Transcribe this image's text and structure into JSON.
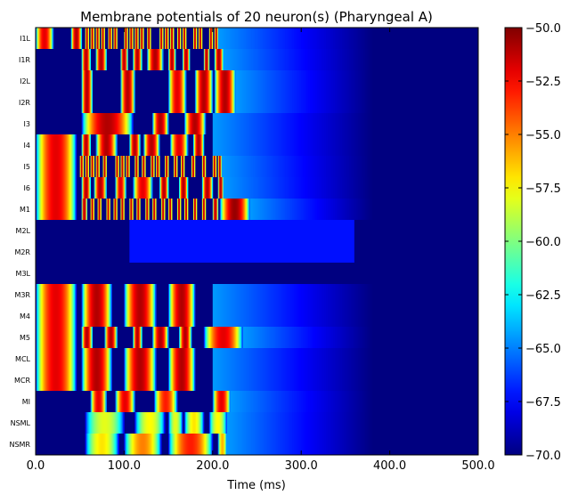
{
  "chart_data": {
    "type": "heatmap",
    "title": "Membrane potentials of 20 neuron(s) (Pharyngeal A)",
    "xlabel": "Time (ms)",
    "ylabel": "",
    "xlim": [
      0,
      500
    ],
    "x_ticks": [
      0,
      100,
      200,
      300,
      400,
      500
    ],
    "x_tick_labels": [
      "0.0",
      "100.0",
      "200.0",
      "300.0",
      "400.0",
      "500.0"
    ],
    "rows": [
      "I1L",
      "I1R",
      "I2L",
      "I2R",
      "I3",
      "I4",
      "I5",
      "I6",
      "M1",
      "M2L",
      "M2R",
      "M3L",
      "M3R",
      "M4",
      "M5",
      "MCL",
      "MCR",
      "MI",
      "NSML",
      "NSMR"
    ],
    "colorbar": {
      "colormap": "jet",
      "range": [
        -70,
        -50
      ],
      "ticks": [
        -50,
        -52.5,
        -55,
        -57.5,
        -60,
        -62.5,
        -65,
        -67.5,
        -70
      ],
      "tick_labels": [
        "−50.0",
        "−52.5",
        "−55.0",
        "−57.5",
        "−60.0",
        "−62.5",
        "−65.0",
        "−67.5",
        "−70.0"
      ]
    },
    "neurons": [
      {
        "name": "I1L",
        "spikes": [
          [
            0,
            20,
            -52
          ],
          [
            40,
            52,
            -51
          ],
          [
            56,
            60,
            -51
          ],
          [
            62,
            66,
            -51
          ],
          [
            68,
            72,
            -51
          ],
          [
            74,
            78,
            -51
          ],
          [
            82,
            86,
            -51
          ],
          [
            88,
            92,
            -51
          ],
          [
            100,
            104,
            -51
          ],
          [
            106,
            110,
            -51
          ],
          [
            112,
            116,
            -51
          ],
          [
            118,
            122,
            -51
          ],
          [
            126,
            130,
            -51
          ],
          [
            140,
            144,
            -51
          ],
          [
            146,
            150,
            -51
          ],
          [
            152,
            156,
            -51
          ],
          [
            160,
            164,
            -51
          ],
          [
            166,
            170,
            -51
          ],
          [
            178,
            182,
            -51
          ],
          [
            184,
            188,
            -51
          ],
          [
            196,
            200,
            -51
          ],
          [
            202,
            206,
            -51
          ]
        ]
      },
      {
        "name": "I1R",
        "spikes": [
          [
            52,
            62,
            -51
          ],
          [
            68,
            80,
            -51
          ],
          [
            96,
            104,
            -51
          ],
          [
            110,
            120,
            -51
          ],
          [
            126,
            144,
            -51
          ],
          [
            150,
            158,
            -51
          ],
          [
            166,
            174,
            -51
          ],
          [
            190,
            196,
            -51
          ],
          [
            202,
            212,
            -51
          ]
        ]
      },
      {
        "name": "I2L",
        "spikes": [
          [
            52,
            64,
            -51
          ],
          [
            96,
            112,
            -51
          ],
          [
            150,
            170,
            -52
          ],
          [
            180,
            200,
            -51
          ],
          [
            202,
            226,
            -51
          ]
        ]
      },
      {
        "name": "I2R",
        "spikes": [
          [
            52,
            64,
            -51
          ],
          [
            96,
            112,
            -51
          ],
          [
            150,
            170,
            -52
          ],
          [
            180,
            200,
            -51
          ],
          [
            202,
            226,
            -51
          ]
        ]
      },
      {
        "name": "I3",
        "spikes": [
          [
            52,
            110,
            -51
          ],
          [
            132,
            150,
            -51
          ],
          [
            168,
            192,
            -51
          ]
        ]
      },
      {
        "name": "I4",
        "spikes": [
          [
            0,
            46,
            -52
          ],
          [
            52,
            62,
            -51
          ],
          [
            68,
            92,
            -51
          ],
          [
            106,
            118,
            -51
          ],
          [
            122,
            140,
            -51
          ],
          [
            152,
            172,
            -52
          ],
          [
            178,
            190,
            -51
          ]
        ]
      },
      {
        "name": "I5",
        "spikes": [
          [
            0,
            46,
            -52
          ],
          [
            50,
            54,
            -51
          ],
          [
            56,
            60,
            -51
          ],
          [
            62,
            66,
            -51
          ],
          [
            68,
            72,
            -51
          ],
          [
            76,
            80,
            -51
          ],
          [
            90,
            94,
            -51
          ],
          [
            96,
            100,
            -51
          ],
          [
            102,
            106,
            -51
          ],
          [
            112,
            116,
            -51
          ],
          [
            120,
            124,
            -51
          ],
          [
            130,
            134,
            -51
          ],
          [
            136,
            140,
            -51
          ],
          [
            146,
            150,
            -51
          ],
          [
            156,
            160,
            -51
          ],
          [
            164,
            168,
            -51
          ],
          [
            176,
            180,
            -51
          ],
          [
            188,
            192,
            -51
          ],
          [
            200,
            204,
            -51
          ],
          [
            206,
            210,
            -51
          ]
        ]
      },
      {
        "name": "I6",
        "spikes": [
          [
            0,
            46,
            -52
          ],
          [
            52,
            62,
            -51
          ],
          [
            66,
            80,
            -51
          ],
          [
            90,
            102,
            -52
          ],
          [
            110,
            132,
            -52
          ],
          [
            140,
            150,
            -51
          ],
          [
            162,
            172,
            -51
          ],
          [
            188,
            200,
            -51
          ],
          [
            206,
            212,
            -51
          ]
        ]
      },
      {
        "name": "M1",
        "spikes": [
          [
            0,
            46,
            -52
          ],
          [
            52,
            58,
            -51
          ],
          [
            62,
            66,
            -51
          ],
          [
            70,
            74,
            -51
          ],
          [
            80,
            84,
            -51
          ],
          [
            88,
            92,
            -51
          ],
          [
            96,
            100,
            -51
          ],
          [
            106,
            110,
            -51
          ],
          [
            114,
            118,
            -51
          ],
          [
            124,
            128,
            -51
          ],
          [
            132,
            136,
            -51
          ],
          [
            142,
            146,
            -51
          ],
          [
            150,
            154,
            -51
          ],
          [
            160,
            164,
            -51
          ],
          [
            168,
            172,
            -51
          ],
          [
            178,
            182,
            -51
          ],
          [
            188,
            192,
            -51
          ],
          [
            200,
            206,
            -51
          ],
          [
            208,
            242,
            -50.5
          ]
        ]
      },
      {
        "name": "M2L",
        "spikes": []
      },
      {
        "name": "M2R",
        "spikes": []
      },
      {
        "name": "M3L",
        "spikes": []
      },
      {
        "name": "M3R",
        "spikes": [
          [
            0,
            46,
            -52
          ],
          [
            52,
            86,
            -51
          ],
          [
            100,
            136,
            -51
          ],
          [
            150,
            180,
            -51
          ]
        ]
      },
      {
        "name": "M4",
        "spikes": [
          [
            0,
            46,
            -52
          ],
          [
            52,
            86,
            -51
          ],
          [
            100,
            136,
            -51
          ],
          [
            150,
            180,
            -51
          ]
        ]
      },
      {
        "name": "M5",
        "spikes": [
          [
            0,
            46,
            -52
          ],
          [
            52,
            64,
            -51
          ],
          [
            78,
            92,
            -51
          ],
          [
            110,
            120,
            -51
          ],
          [
            132,
            150,
            -51
          ],
          [
            162,
            176,
            -51
          ],
          [
            190,
            234,
            -52
          ]
        ]
      },
      {
        "name": "MCL",
        "spikes": [
          [
            0,
            46,
            -52
          ],
          [
            52,
            86,
            -51
          ],
          [
            100,
            136,
            -51
          ],
          [
            150,
            180,
            -51
          ]
        ]
      },
      {
        "name": "MCR",
        "spikes": [
          [
            0,
            46,
            -52
          ],
          [
            52,
            86,
            -51
          ],
          [
            100,
            136,
            -51
          ],
          [
            150,
            180,
            -51
          ]
        ]
      },
      {
        "name": "MI",
        "spikes": [
          [
            62,
            80,
            -52
          ],
          [
            90,
            112,
            -52
          ],
          [
            134,
            160,
            -53
          ],
          [
            200,
            220,
            -52
          ]
        ]
      },
      {
        "name": "NSML",
        "spikes": [
          [
            56,
            100,
            -58
          ],
          [
            112,
            146,
            -57.5
          ],
          [
            150,
            166,
            -58
          ],
          [
            168,
            190,
            -57
          ],
          [
            196,
            216,
            -57.5
          ]
        ]
      },
      {
        "name": "NSMR",
        "spikes": [
          [
            56,
            94,
            -57
          ],
          [
            100,
            142,
            -55
          ],
          [
            150,
            200,
            -53
          ],
          [
            206,
            216,
            -56
          ]
        ]
      }
    ],
    "background_levels": [
      {
        "rows": [
          9,
          10
        ],
        "segments": [
          [
            0,
            104,
            -70
          ],
          [
            106,
            360,
            -67.2
          ]
        ]
      },
      {
        "rows": [
          11
        ],
        "segments": [
          [
            0,
            500,
            -70
          ]
        ]
      }
    ],
    "decay_tail_ms": [
      200,
      380
    ]
  }
}
